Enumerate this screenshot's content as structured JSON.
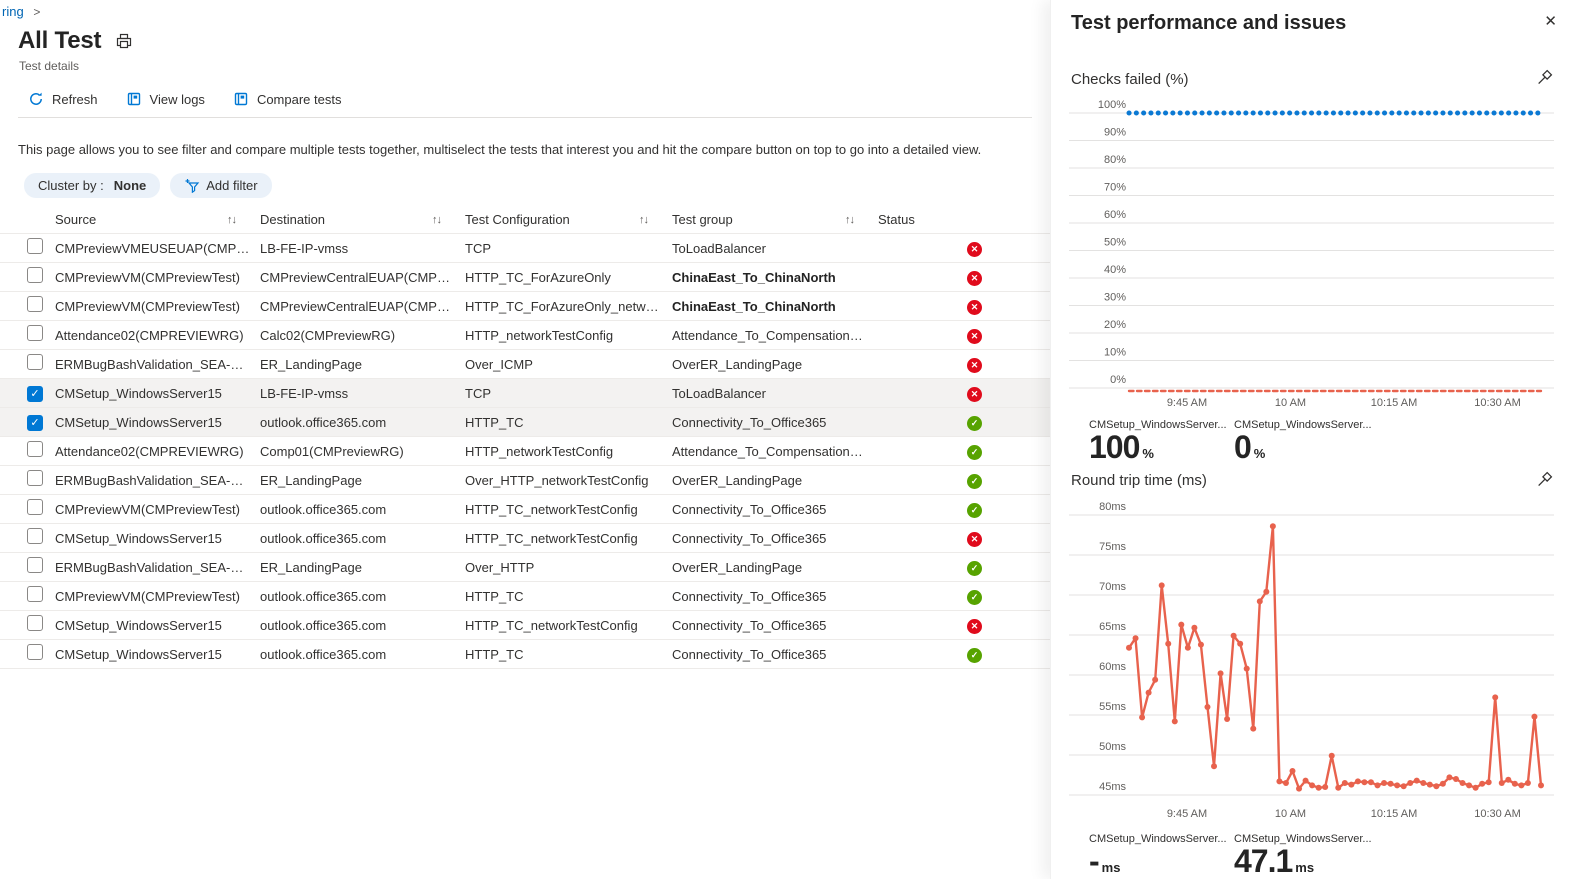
{
  "breadcrumb": {
    "link": "ring",
    "chevron": ">"
  },
  "header": {
    "title": "All Test",
    "subtitle": "Test details"
  },
  "toolbar": {
    "buttons": [
      {
        "label": "Refresh",
        "icon": "refresh-icon"
      },
      {
        "label": "View logs",
        "icon": "logs-icon"
      },
      {
        "label": "Compare tests",
        "icon": "compare-icon"
      }
    ]
  },
  "description": "This page allows you to see filter and compare multiple tests together, multiselect the tests that interest you and hit the compare button on top to go into a detailed view.",
  "filters": {
    "cluster_by_label": "Cluster by :",
    "cluster_by_value": "None",
    "add_filter_label": "Add filter"
  },
  "icons": {
    "sort": "↑↓",
    "close": "✕",
    "check": "✓",
    "fail": "✕"
  },
  "colors": {
    "accent": "#0078d4",
    "link": "#0065b3",
    "error": "#e00b1c",
    "success": "#57a300",
    "chart_blue": "#0b79d3",
    "chart_red": "#e8624d"
  },
  "table": {
    "columns": [
      {
        "key": "source",
        "label": "Source",
        "sortable": true
      },
      {
        "key": "destination",
        "label": "Destination",
        "sortable": true
      },
      {
        "key": "config",
        "label": "Test Configuration",
        "sortable": true
      },
      {
        "key": "group",
        "label": "Test group",
        "sortable": true
      },
      {
        "key": "status",
        "label": "Status",
        "sortable": false
      }
    ],
    "rows": [
      {
        "checked": false,
        "source": "CMPreviewVMEUSEUAP(CMPREVIE...",
        "destination": "LB-FE-IP-vmss",
        "config": "TCP",
        "group": "ToLoadBalancer",
        "status": "fail"
      },
      {
        "checked": false,
        "source": "CMPreviewVM(CMPreviewTest)",
        "destination": "CMPreviewCentralEUAP(CMPREVIE...",
        "config": "HTTP_TC_ForAzureOnly",
        "group": "ChinaEast_To_ChinaNorth",
        "group_bold": true,
        "status": "fail"
      },
      {
        "checked": false,
        "source": "CMPreviewVM(CMPreviewTest)",
        "destination": "CMPreviewCentralEUAP(CMPREVIE...",
        "config": "HTTP_TC_ForAzureOnly_networkTe...",
        "group": "ChinaEast_To_ChinaNorth",
        "group_bold": true,
        "status": "fail"
      },
      {
        "checked": false,
        "source": "Attendance02(CMPREVIEWRG)",
        "destination": "Calc02(CMPreviewRG)",
        "config": "HTTP_networkTestConfig",
        "group": "Attendance_To_Compensation_and...",
        "status": "fail"
      },
      {
        "checked": false,
        "source": "ERMBugBashValidation_SEA-ER-50...",
        "destination": "ER_LandingPage",
        "config": "Over_ICMP",
        "group": "OverER_LandingPage",
        "status": "fail"
      },
      {
        "checked": true,
        "source": "CMSetup_WindowsServer15",
        "destination": "LB-FE-IP-vmss",
        "config": "TCP",
        "group": "ToLoadBalancer",
        "status": "fail"
      },
      {
        "checked": true,
        "source": "CMSetup_WindowsServer15",
        "destination": "outlook.office365.com",
        "config": "HTTP_TC",
        "group": "Connectivity_To_Office365",
        "status": "pass"
      },
      {
        "checked": false,
        "source": "Attendance02(CMPREVIEWRG)",
        "destination": "Comp01(CMPreviewRG)",
        "config": "HTTP_networkTestConfig",
        "group": "Attendance_To_Compensation_and...",
        "status": "pass"
      },
      {
        "checked": false,
        "source": "ERMBugBashValidation_SEA-ER-50...",
        "destination": "ER_LandingPage",
        "config": "Over_HTTP_networkTestConfig",
        "group": "OverER_LandingPage",
        "status": "pass"
      },
      {
        "checked": false,
        "source": "CMPreviewVM(CMPreviewTest)",
        "destination": "outlook.office365.com",
        "config": "HTTP_TC_networkTestConfig",
        "group": "Connectivity_To_Office365",
        "status": "pass"
      },
      {
        "checked": false,
        "source": "CMSetup_WindowsServer15",
        "destination": "outlook.office365.com",
        "config": "HTTP_TC_networkTestConfig",
        "group": "Connectivity_To_Office365",
        "status": "fail"
      },
      {
        "checked": false,
        "source": "ERMBugBashValidation_SEA-ER-50...",
        "destination": "ER_LandingPage",
        "config": "Over_HTTP",
        "group": "OverER_LandingPage",
        "status": "pass"
      },
      {
        "checked": false,
        "source": "CMPreviewVM(CMPreviewTest)",
        "destination": "outlook.office365.com",
        "config": "HTTP_TC",
        "group": "Connectivity_To_Office365",
        "status": "pass"
      },
      {
        "checked": false,
        "source": "CMSetup_WindowsServer15",
        "destination": "outlook.office365.com",
        "config": "HTTP_TC_networkTestConfig",
        "group": "Connectivity_To_Office365",
        "status": "fail"
      },
      {
        "checked": false,
        "source": "CMSetup_WindowsServer15",
        "destination": "outlook.office365.com",
        "config": "HTTP_TC",
        "group": "Connectivity_To_Office365",
        "status": "pass"
      }
    ]
  },
  "panel": {
    "title": "Test performance and issues"
  },
  "chart_data": [
    {
      "type": "line",
      "title": "Checks failed (%)",
      "ylim": [
        0,
        100
      ],
      "y_ticks": [
        "100%",
        "90%",
        "80%",
        "70%",
        "60%",
        "50%",
        "40%",
        "30%",
        "20%",
        "10%",
        "0%"
      ],
      "x_ticks": [
        "9:45 AM",
        "10 AM",
        "10:15 AM",
        "10:30 AM"
      ],
      "x_start": "9:36 AM",
      "x_interval_minutes": 1,
      "points": 64,
      "grid": true,
      "legend_position": "bottom",
      "series": [
        {
          "name": "CMSetup_WindowsServer...",
          "color": "#0b79d3",
          "style": "dotted",
          "constant": 100
        },
        {
          "name": "CMSetup_WindowsServer...",
          "color": "#e8624d",
          "style": "dashed",
          "constant": 0
        }
      ],
      "legend": [
        {
          "label": "CMSetup_WindowsServer...",
          "value": "100",
          "unit": "%",
          "color": "#0b79d3"
        },
        {
          "label": "CMSetup_WindowsServer...",
          "value": "0",
          "unit": "%",
          "color": "#e8624d"
        }
      ]
    },
    {
      "type": "line",
      "title": "Round trip time (ms)",
      "ylim": [
        45,
        80
      ],
      "y_ticks": [
        "80ms",
        "75ms",
        "70ms",
        "65ms",
        "60ms",
        "55ms",
        "50ms",
        "45ms"
      ],
      "x_ticks": [
        "9:45 AM",
        "10 AM",
        "10:15 AM",
        "10:30 AM"
      ],
      "x_start": "9:36 AM",
      "x_interval_minutes": 1,
      "points": 64,
      "grid": true,
      "legend_position": "bottom",
      "series": [
        {
          "name": "CMSetup_WindowsServer...",
          "color": "#e8624d",
          "style": "solid-markers",
          "values": [
            63.4,
            64.6,
            54.7,
            57.8,
            59.4,
            71.2,
            63.9,
            54.2,
            66.3,
            63.4,
            65.9,
            63.8,
            56.0,
            48.6,
            60.2,
            54.5,
            64.9,
            63.9,
            60.8,
            53.3,
            69.2,
            70.4,
            78.6,
            46.7,
            46.5,
            48.0,
            45.8,
            46.8,
            46.2,
            45.9,
            46.0,
            49.9,
            45.9,
            46.5,
            46.3,
            46.7,
            46.6,
            46.6,
            46.2,
            46.5,
            46.4,
            46.2,
            46.1,
            46.5,
            46.8,
            46.5,
            46.3,
            46.1,
            46.4,
            47.2,
            47.0,
            46.5,
            46.2,
            45.9,
            46.4,
            46.6,
            57.2,
            46.5,
            46.9,
            46.4,
            46.2,
            46.5,
            54.8,
            46.2
          ]
        }
      ],
      "legend": [
        {
          "label": "CMSetup_WindowsServer...",
          "value": "-",
          "unit": "ms",
          "color": "#0b79d3"
        },
        {
          "label": "CMSetup_WindowsServer...",
          "value": "47.1",
          "unit": "ms",
          "color": "#e8624d"
        }
      ]
    }
  ]
}
